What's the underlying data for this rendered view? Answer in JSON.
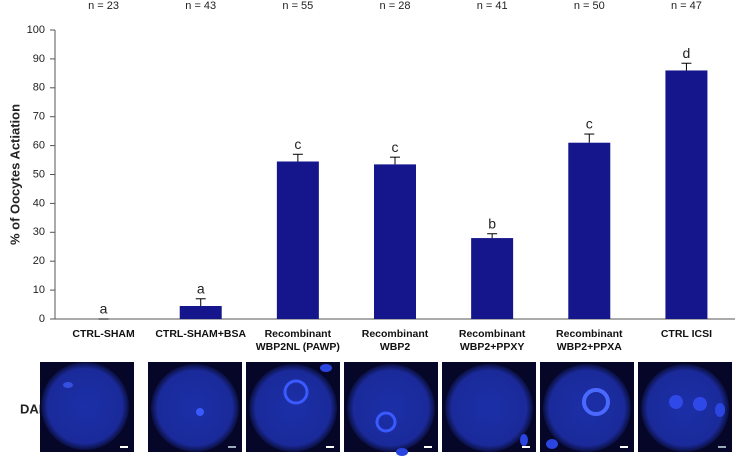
{
  "chart_data": {
    "type": "bar",
    "ylabel": "% of Oocytes Actiation",
    "categories": [
      "CTRL-SHAM",
      "CTRL-SHAM+BSA",
      "Recombinant WBP2NL (PAWP)",
      "Recombinant WBP2",
      "Recombinant WBP2+PPXY",
      "Recombinant WBP2+PPXA",
      "CTRL ICSI"
    ],
    "values": [
      0,
      4.5,
      54.5,
      53.5,
      28,
      61,
      86
    ],
    "errors": [
      0,
      2.5,
      2.5,
      2.5,
      1.5,
      3,
      2.5
    ],
    "annotations": [
      "a",
      "a",
      "c",
      "c",
      "b",
      "c",
      "d"
    ],
    "n_labels": [
      "n = 23",
      "n = 43",
      "n = 55",
      "n = 28",
      "n = 41",
      "n = 50",
      "n = 47"
    ],
    "color": "#15158c",
    "ylim": [
      0,
      100
    ],
    "yticks": [
      0,
      10,
      20,
      30,
      40,
      50,
      60,
      70,
      80,
      90,
      100
    ]
  },
  "panel_label": "DAPI"
}
